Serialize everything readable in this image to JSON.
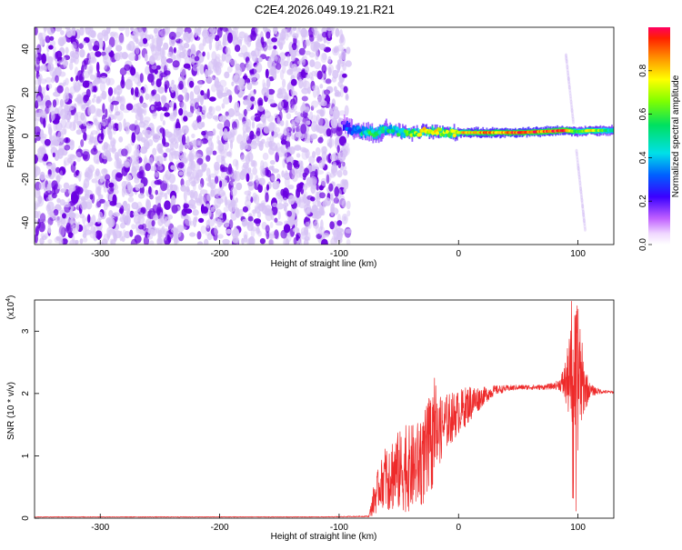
{
  "page_title": "C2E4.2026.049.19.21.R21",
  "chart_data": [
    {
      "type": "heatmap",
      "xlabel": "Height of straight line (km)",
      "ylabel": "Frequency (Hz)",
      "xlim": [
        -355,
        130
      ],
      "ylim": [
        -50,
        50
      ],
      "x_ticks": [
        -300,
        -200,
        -100,
        0,
        100
      ],
      "y_ticks": [
        -40,
        -20,
        0,
        20,
        40
      ],
      "colorbar": {
        "label": "Normalized spectral amplitude",
        "range": [
          0,
          1
        ],
        "ticks": [
          "0.0",
          "0.2",
          "0.4",
          "0.6",
          "0.8"
        ],
        "tick_values": [
          0.0,
          0.2,
          0.4,
          0.6,
          0.8
        ]
      },
      "colors": {
        "noise_dark": "#6a00e0",
        "noise_light": "#d6c2f5"
      },
      "signal_trace": [
        {
          "x": -97,
          "f": 5,
          "a": 0.22
        },
        {
          "x": -90,
          "f": 3,
          "a": 0.35
        },
        {
          "x": -80,
          "f": 2,
          "a": 0.45
        },
        {
          "x": -70,
          "f": 1,
          "a": 0.55
        },
        {
          "x": -60,
          "f": 3,
          "a": 0.45
        },
        {
          "x": -50,
          "f": 2,
          "a": 0.5
        },
        {
          "x": -40,
          "f": 1,
          "a": 0.6
        },
        {
          "x": -30,
          "f": 2,
          "a": 0.7
        },
        {
          "x": -20,
          "f": 2,
          "a": 0.75
        },
        {
          "x": -10,
          "f": 1.5,
          "a": 0.65
        },
        {
          "x": 0,
          "f": 1.5,
          "a": 0.72
        },
        {
          "x": 10,
          "f": 1.5,
          "a": 0.8
        },
        {
          "x": 30,
          "f": 1.5,
          "a": 0.85
        },
        {
          "x": 50,
          "f": 1.5,
          "a": 0.9
        },
        {
          "x": 70,
          "f": 2,
          "a": 0.9
        },
        {
          "x": 90,
          "f": 2.5,
          "a": 0.95
        },
        {
          "x": 100,
          "f": 2,
          "a": 0.6
        },
        {
          "x": 110,
          "f": 2.5,
          "a": 0.75
        },
        {
          "x": 125,
          "f": 2.5,
          "a": 0.55
        }
      ],
      "streak": {
        "x": [
          90,
          106
        ],
        "f": [
          37,
          -43
        ]
      }
    },
    {
      "type": "line",
      "xlabel": "Height of straight line (km)",
      "ylabel": "SNR (10 * v/v)",
      "y_multiplier": "(x10",
      "y_multiplier_exp": "4",
      "y_multiplier_close": ")",
      "xlim": [
        -355,
        130
      ],
      "ylim": [
        0,
        3.5
      ],
      "x_ticks": [
        -300,
        -200,
        -100,
        0,
        100
      ],
      "y_ticks": [
        0,
        1,
        2,
        3
      ],
      "color": "#ee2b2b",
      "envelope": {
        "x": [
          -355,
          -110,
          -75,
          -70,
          -65,
          -60,
          -50,
          -40,
          -30,
          -25,
          -20,
          -10,
          0,
          10,
          20,
          30,
          40,
          50,
          60,
          70,
          80,
          85,
          90,
          95,
          100,
          105,
          110,
          120,
          130
        ],
        "y": [
          0.02,
          0.02,
          0.03,
          0.35,
          0.55,
          0.7,
          0.75,
          0.8,
          0.9,
          1.05,
          1.3,
          1.55,
          1.7,
          1.85,
          1.95,
          2.05,
          2.08,
          2.1,
          2.1,
          2.1,
          2.12,
          2.15,
          2.18,
          2.3,
          2.25,
          2.1,
          2.05,
          2.03,
          2.02
        ],
        "amp": [
          0.005,
          0.005,
          0.01,
          0.3,
          0.35,
          0.6,
          0.65,
          0.7,
          0.7,
          0.9,
          0.6,
          0.45,
          0.35,
          0.3,
          0.15,
          0.08,
          0.05,
          0.04,
          0.04,
          0.04,
          0.05,
          0.1,
          0.4,
          0.9,
          1.2,
          0.45,
          0.1,
          0.03,
          0.02
        ]
      }
    }
  ]
}
